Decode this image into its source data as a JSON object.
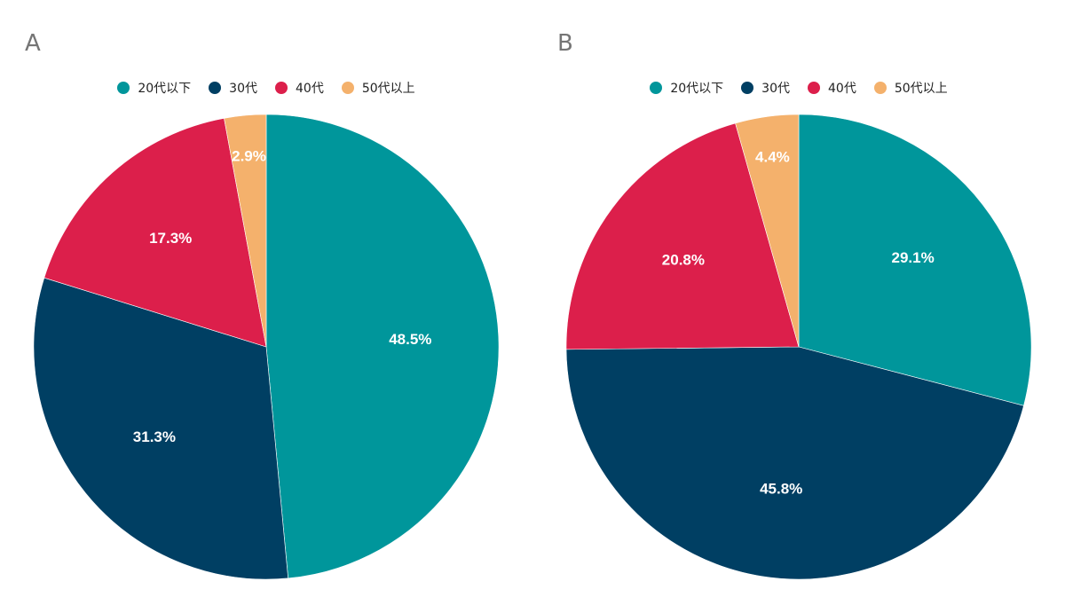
{
  "chart_data": [
    {
      "type": "pie",
      "title": "A",
      "legend_position": "top",
      "categories": [
        "20代以下",
        "30代",
        "40代",
        "50代以上"
      ],
      "values": [
        48.5,
        31.3,
        17.3,
        2.9
      ],
      "labels": [
        "48.5%",
        "31.3%",
        "17.3%",
        "2.9%"
      ],
      "colors": [
        "#00969B",
        "#003F63",
        "#DC1F4B",
        "#F4B16C"
      ]
    },
    {
      "type": "pie",
      "title": "B",
      "legend_position": "top",
      "categories": [
        "20代以下",
        "30代",
        "40代",
        "50代以上"
      ],
      "values": [
        29.1,
        45.8,
        20.8,
        4.4
      ],
      "labels": [
        "29.1%",
        "45.8%",
        "20.8%",
        "4.4%"
      ],
      "colors": [
        "#00969B",
        "#003F63",
        "#DC1F4B",
        "#F4B16C"
      ]
    }
  ]
}
